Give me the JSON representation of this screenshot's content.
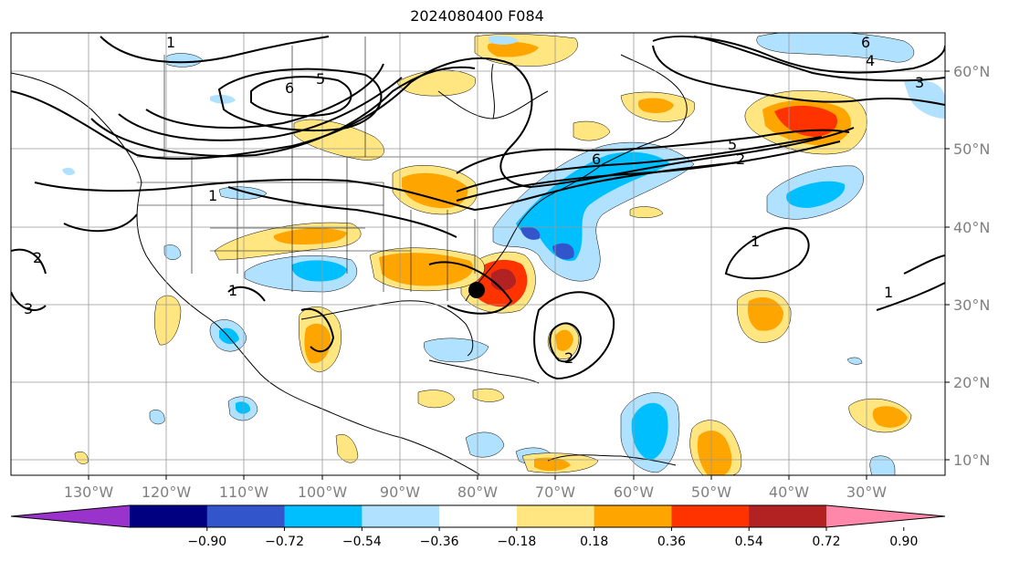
{
  "title": "2024080400 F084",
  "map": {
    "lat_labels": [
      "60°N",
      "50°N",
      "40°N",
      "30°N",
      "20°N",
      "10°N"
    ],
    "lon_labels": [
      "130°W",
      "120°W",
      "110°W",
      "100°W",
      "90°W",
      "80°W",
      "70°W",
      "60°W",
      "50°W",
      "40°W",
      "30°W"
    ],
    "contour_labels": [
      "1",
      "6",
      "5",
      "6",
      "5",
      "2",
      "1",
      "2",
      "3",
      "1",
      "1",
      "1",
      "2",
      "6",
      "4",
      "3"
    ],
    "colors": {
      "neg_090": "#9933cc",
      "neg_072": "#000080",
      "neg_054": "#3355cc",
      "neg_036": "#00bfff",
      "neg_018": "#b0e2ff",
      "pos_018": "#ffe680",
      "pos_036": "#ffa500",
      "pos_054": "#ff3300",
      "pos_072": "#b22222",
      "pos_090": "#ff88aa"
    }
  },
  "colorbar": {
    "ticks": [
      "−0.90",
      "−0.72",
      "−0.54",
      "−0.36",
      "−0.18",
      "0.18",
      "0.36",
      "0.54",
      "0.72",
      "0.90"
    ],
    "colors": [
      "#9933cc",
      "#000080",
      "#3355cc",
      "#00bfff",
      "#b0e2ff",
      "#ffffff",
      "#ffe680",
      "#ffa500",
      "#ff3300",
      "#b22222",
      "#ff88aa"
    ]
  }
}
